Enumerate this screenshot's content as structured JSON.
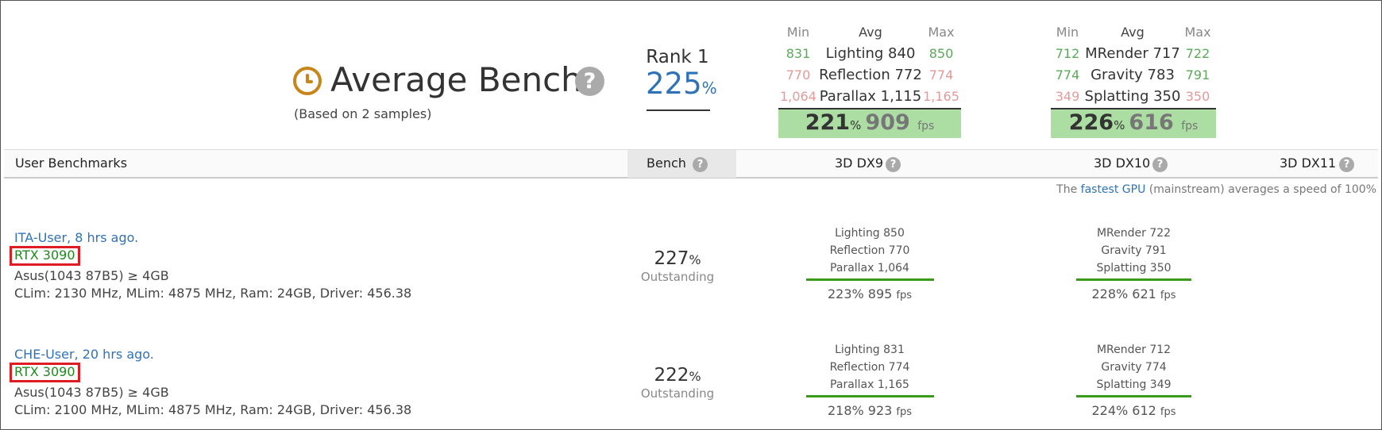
{
  "header": {
    "title": "Average Bench",
    "subtitle": "(Based on 2 samples)",
    "rank_label": "Rank 1",
    "rank_value": "225",
    "pct_sign": "%"
  },
  "summary": {
    "col_labels": {
      "min": "Min",
      "avg": "Avg",
      "max": "Max"
    },
    "dx9": {
      "rows": [
        {
          "min": "831",
          "avg": "Lighting 840",
          "max": "850"
        },
        {
          "min": "770",
          "avg": "Reflection 772",
          "max": "774"
        },
        {
          "min": "1,064",
          "avg": "Parallax 1,115",
          "max": "1,165"
        }
      ],
      "pct": "221",
      "fps": "909"
    },
    "dx10": {
      "rows": [
        {
          "min": "712",
          "avg": "MRender 717",
          "max": "722"
        },
        {
          "min": "774",
          "avg": "Gravity 783",
          "max": "791"
        },
        {
          "min": "349",
          "avg": "Splatting 350",
          "max": "350"
        }
      ],
      "pct": "226",
      "fps": "616"
    },
    "fps_unit": "fps",
    "colors": {
      "good": "#5aaa5a",
      "bad": "#e29a9a",
      "box": "#acdea3"
    }
  },
  "table": {
    "headers": {
      "user": "User Benchmarks",
      "bench": "Bench",
      "dx9": "3D DX9",
      "dx10": "3D DX10",
      "dx11": "3D DX11"
    },
    "note_prefix": "The",
    "note_link": "fastest GPU",
    "note_suffix": "(mainstream) averages a speed of 100%"
  },
  "rows": [
    {
      "user": "ITA-User, 8 hrs ago.",
      "gpu": "RTX 3090",
      "board": "Asus(1043 87B5) ≥ 4GB",
      "specs": "CLim: 2130 MHz, MLim: 4875 MHz, Ram: 24GB, Driver: 456.38",
      "bench": "227",
      "grade": "Outstanding",
      "dx9": [
        "Lighting 850",
        "Reflection 770",
        "Parallax 1,064"
      ],
      "dx9_total": "223% 895",
      "dx10": [
        "MRender 722",
        "Gravity 791",
        "Splatting 350"
      ],
      "dx10_total": "228% 621"
    },
    {
      "user": "CHE-User, 20 hrs ago.",
      "gpu": "RTX 3090",
      "board": "Asus(1043 87B5) ≥ 4GB",
      "specs": "CLim: 2100 MHz, MLim: 4875 MHz, Ram: 24GB, Driver: 456.38",
      "bench": "222",
      "grade": "Outstanding",
      "dx9": [
        "Lighting 831",
        "Reflection 774",
        "Parallax 1,165"
      ],
      "dx9_total": "218% 923",
      "dx10": [
        "MRender 712",
        "Gravity 774",
        "Splatting 349"
      ],
      "dx10_total": "224% 612"
    }
  ]
}
